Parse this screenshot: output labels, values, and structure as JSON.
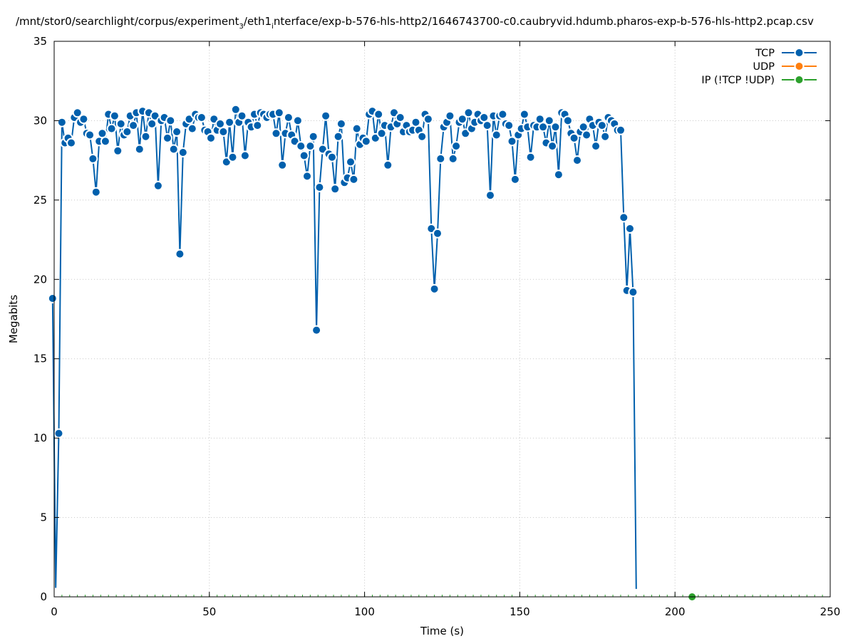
{
  "chart_data": {
    "type": "line",
    "title": {
      "before": "/mnt/stor0/searchlight/corpus/experiment",
      "sub1": "3",
      "middle": "/eth1",
      "sub2": "i",
      "after": "nterface/exp-b-576-hls-http2/1646743700-c0.caubryvid.hdumb.pharos-exp-b-576-hls-http2.pcap.csv"
    },
    "xlabel": "Time (s)",
    "ylabel": "Megabits",
    "xlim": [
      0,
      250
    ],
    "ylim": [
      0,
      35
    ],
    "xticks": [
      0,
      50,
      100,
      150,
      200,
      250
    ],
    "yticks": [
      0,
      5,
      10,
      15,
      20,
      25,
      30,
      35
    ],
    "grid": true,
    "legend_position": "top-right",
    "series": [
      {
        "name": "TCP",
        "color": "#0060ad",
        "x": [
          -0.5,
          0.5,
          1.5,
          2.5,
          3.5,
          4.5,
          5.5,
          6.5,
          7.5,
          8.5,
          9.5,
          10.5,
          11.5,
          12.5,
          13.5,
          14.5,
          15.5,
          16.5,
          17.5,
          18.5,
          19.5,
          20.5,
          21.5,
          22.5,
          23.5,
          24.5,
          25.5,
          26.5,
          27.5,
          28.5,
          29.5,
          30.5,
          31.5,
          32.5,
          33.5,
          34.5,
          35.5,
          36.5,
          37.5,
          38.5,
          39.5,
          40.5,
          41.5,
          42.5,
          43.5,
          44.5,
          45.5,
          46.5,
          47.5,
          48.5,
          49.5,
          50.5,
          51.5,
          52.5,
          53.5,
          54.5,
          55.5,
          56.5,
          57.5,
          58.5,
          59.5,
          60.5,
          61.5,
          62.5,
          63.5,
          64.5,
          65.5,
          66.5,
          67.5,
          68.5,
          69.5,
          70.5,
          71.5,
          72.5,
          73.5,
          74.5,
          75.5,
          76.5,
          77.5,
          78.5,
          79.5,
          80.5,
          81.5,
          82.5,
          83.5,
          84.5,
          85.5,
          86.5,
          87.5,
          88.5,
          89.5,
          90.5,
          91.5,
          92.5,
          93.5,
          94.5,
          95.5,
          96.5,
          97.5,
          98.5,
          99.5,
          100.5,
          101.5,
          102.5,
          103.5,
          104.5,
          105.5,
          106.5,
          107.5,
          108.5,
          109.5,
          110.5,
          111.5,
          112.5,
          113.5,
          114.5,
          115.5,
          116.5,
          117.5,
          118.5,
          119.5,
          120.5,
          121.5,
          122.5,
          123.5,
          124.5,
          125.5,
          126.5,
          127.5,
          128.5,
          129.5,
          130.5,
          131.5,
          132.5,
          133.5,
          134.5,
          135.5,
          136.5,
          137.5,
          138.5,
          139.5,
          140.5,
          141.5,
          142.5,
          143.5,
          144.5,
          145.5,
          146.5,
          147.5,
          148.5,
          149.5,
          150.5,
          151.5,
          152.5,
          153.5,
          154.5,
          155.5,
          156.5,
          157.5,
          158.5,
          159.5,
          160.5,
          161.5,
          162.5,
          163.5,
          164.5,
          165.5,
          166.5,
          167.5,
          168.5,
          169.5,
          170.5,
          171.5,
          172.5,
          173.5,
          174.5,
          175.5,
          176.5,
          177.5,
          178.5,
          179.5,
          180.5,
          181.5,
          182.5,
          183.5,
          184.5,
          185.5,
          186.5,
          187.5
        ],
        "y": [
          18.8,
          0.6,
          10.3,
          29.9,
          28.6,
          28.9,
          28.6,
          30.2,
          30.5,
          29.9,
          30.1,
          29.2,
          29.1,
          27.6,
          25.5,
          28.7,
          29.2,
          28.7,
          30.4,
          29.5,
          30.3,
          28.1,
          29.8,
          29.1,
          29.3,
          30.3,
          29.7,
          30.5,
          28.2,
          30.6,
          29.0,
          30.5,
          29.8,
          30.3,
          25.9,
          30.0,
          30.2,
          28.9,
          30.0,
          28.2,
          29.3,
          21.6,
          28.0,
          29.8,
          30.1,
          29.5,
          30.4,
          30.2,
          30.2,
          29.4,
          29.3,
          28.9,
          30.1,
          29.4,
          29.8,
          29.3,
          27.4,
          29.9,
          27.7,
          30.7,
          29.9,
          30.3,
          27.8,
          29.9,
          29.6,
          30.4,
          29.7,
          30.5,
          30.4,
          30.2,
          30.4,
          30.4,
          29.2,
          30.5,
          27.2,
          29.2,
          30.2,
          29.1,
          28.7,
          30.0,
          28.4,
          27.8,
          26.5,
          28.4,
          29.0,
          16.8,
          25.8,
          28.2,
          30.3,
          27.9,
          27.7,
          25.7,
          29.0,
          29.8,
          26.1,
          26.4,
          27.4,
          26.3,
          29.5,
          28.5,
          28.9,
          28.7,
          30.4,
          30.6,
          28.9,
          30.4,
          29.2,
          29.7,
          27.2,
          29.6,
          30.5,
          29.8,
          30.2,
          29.3,
          29.7,
          29.3,
          29.4,
          29.9,
          29.4,
          29.0,
          30.4,
          30.1,
          23.2,
          19.4,
          22.9,
          27.6,
          29.6,
          29.9,
          30.3,
          27.6,
          28.4,
          29.9,
          30.1,
          29.2,
          30.5,
          29.5,
          29.9,
          30.4,
          30.0,
          30.2,
          29.7,
          25.3,
          30.3,
          29.1,
          30.3,
          30.4,
          29.8,
          29.7,
          28.7,
          26.3,
          29.1,
          29.5,
          30.4,
          29.6,
          27.7,
          29.7,
          29.6,
          30.1,
          29.6,
          28.6,
          30.0,
          28.4,
          29.6,
          26.6,
          30.5,
          30.4,
          30.0,
          29.2,
          28.9,
          27.5,
          29.3,
          29.6,
          29.1,
          30.1,
          29.7,
          28.4,
          29.9,
          29.7,
          29.0,
          30.2,
          30.0,
          29.8,
          29.4,
          29.4,
          23.9,
          19.3,
          23.2,
          19.2,
          0.5
        ],
        "markers": [
          true,
          false,
          true,
          true,
          true,
          true,
          true,
          true,
          true,
          true,
          true,
          true,
          true,
          true,
          true,
          true,
          true,
          true,
          true,
          true,
          true,
          true,
          true,
          true,
          true,
          true,
          true,
          true,
          true,
          true,
          true,
          true,
          true,
          true,
          true,
          true,
          true,
          true,
          true,
          true,
          true,
          true,
          true,
          true,
          true,
          true,
          true,
          true,
          true,
          true,
          true,
          true,
          true,
          true,
          true,
          true,
          true,
          true,
          true,
          true,
          true,
          true,
          true,
          true,
          true,
          true,
          true,
          true,
          true,
          true,
          true,
          true,
          true,
          true,
          true,
          true,
          true,
          true,
          true,
          true,
          true,
          true,
          true,
          true,
          true,
          true,
          true,
          true,
          true,
          true,
          true,
          true,
          true,
          true,
          true,
          true,
          true,
          true,
          true,
          true,
          true,
          true,
          true,
          true,
          true,
          true,
          true,
          true,
          true,
          true,
          true,
          true,
          true,
          true,
          true,
          true,
          true,
          true,
          true,
          true,
          true,
          true,
          true,
          true,
          true,
          true,
          true,
          true,
          true,
          true,
          true,
          true,
          true,
          true,
          true,
          true,
          true,
          true,
          true,
          true,
          true,
          true,
          true,
          true,
          true,
          true,
          true,
          true,
          true,
          true,
          true,
          true,
          true,
          true,
          true,
          true,
          true,
          true,
          true,
          true,
          true,
          true,
          true,
          true,
          true,
          true,
          true,
          true,
          true,
          true,
          true,
          true,
          true,
          true,
          true,
          true,
          true,
          true,
          true,
          true,
          true,
          true,
          true,
          true,
          true,
          true,
          true,
          true,
          false
        ]
      },
      {
        "name": "UDP",
        "color": "#ff7f0e",
        "x": [],
        "y": []
      },
      {
        "name": "IP (!TCP  !UDP)",
        "color": "#2ca02c",
        "x": [
          205.5
        ],
        "y": [
          0.0
        ],
        "baseline_ticks": true
      }
    ]
  }
}
